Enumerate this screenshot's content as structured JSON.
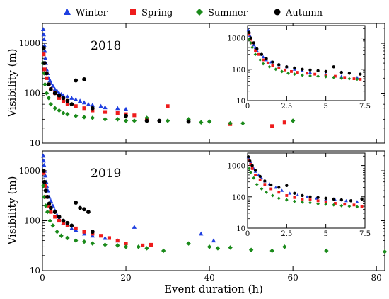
{
  "legend": [
    {
      "name": "Winter",
      "marker": "triangle",
      "color": "#1f3fe0"
    },
    {
      "name": "Spring",
      "marker": "square",
      "color": "#ee1c1c"
    },
    {
      "name": "Summer",
      "marker": "diamond",
      "color": "#1a8a1a"
    },
    {
      "name": "Autumn",
      "marker": "circle",
      "color": "#000000"
    }
  ],
  "chart_data": [
    {
      "type": "scatter",
      "title": "2018",
      "xlabel": "",
      "ylabel": "Visibility (m)",
      "xlim": [
        0,
        82
      ],
      "ylim": [
        10,
        2500
      ],
      "yscale": "log",
      "y_ticks": [
        10,
        100,
        1000
      ],
      "x_ticks": [],
      "legend_placement": "top",
      "series": [
        {
          "name": "Winter",
          "x": [
            0.2,
            0.3,
            0.4,
            0.5,
            0.6,
            0.7,
            0.8,
            1,
            1.2,
            1.5,
            1.8,
            2,
            2.5,
            3,
            3.5,
            4,
            4.5,
            5,
            6,
            7,
            8,
            9,
            10,
            11,
            12,
            14,
            15,
            18,
            20
          ],
          "y": [
            1900,
            1500,
            1200,
            900,
            700,
            500,
            400,
            300,
            250,
            200,
            180,
            160,
            140,
            120,
            110,
            100,
            95,
            90,
            85,
            80,
            75,
            70,
            65,
            60,
            58,
            55,
            52,
            50,
            48
          ]
        },
        {
          "name": "Spring",
          "x": [
            0.3,
            0.5,
            1,
            1.5,
            2,
            3,
            4,
            5,
            6,
            8,
            10,
            12,
            15,
            18,
            20,
            22,
            25,
            30,
            45,
            55,
            58
          ],
          "y": [
            600,
            300,
            200,
            150,
            120,
            100,
            80,
            70,
            60,
            55,
            50,
            45,
            42,
            40,
            38,
            36,
            30,
            55,
            24,
            22,
            26
          ]
        },
        {
          "name": "Summer",
          "x": [
            0.2,
            0.4,
            0.6,
            1,
            1.5,
            2,
            3,
            4,
            5,
            6,
            8,
            10,
            12,
            15,
            18,
            20,
            22,
            25,
            30,
            35,
            38,
            40,
            45,
            48,
            60
          ],
          "y": [
            400,
            250,
            150,
            100,
            80,
            60,
            50,
            45,
            40,
            38,
            35,
            33,
            32,
            30,
            30,
            28,
            28,
            32,
            28,
            30,
            26,
            27,
            25,
            25,
            28
          ]
        },
        {
          "name": "Autumn",
          "x": [
            0.3,
            0.5,
            1,
            1.5,
            2,
            3,
            4,
            5,
            6,
            7,
            8,
            10,
            12,
            20,
            25,
            28,
            35
          ],
          "y": [
            800,
            400,
            250,
            150,
            120,
            100,
            90,
            80,
            70,
            60,
            180,
            190,
            50,
            35,
            28,
            28,
            27
          ]
        }
      ]
    },
    {
      "type": "scatter",
      "title": "",
      "xlabel": "",
      "ylabel": "",
      "xlim": [
        0,
        7.5
      ],
      "ylim": [
        10,
        2500
      ],
      "yscale": "log",
      "x_ticks": [
        0,
        2.5,
        5,
        7.5
      ],
      "y_ticks": [
        10,
        100,
        1000
      ],
      "legend_placement": "none",
      "series": [
        {
          "name": "Winter",
          "x": [
            0.05,
            0.1,
            0.15,
            0.2,
            0.3,
            0.4,
            0.5,
            0.6,
            0.8,
            1,
            1.2,
            1.5,
            2,
            2.5,
            3,
            3.5,
            4,
            5,
            6,
            7
          ],
          "y": [
            1800,
            1500,
            1200,
            900,
            700,
            600,
            500,
            400,
            300,
            250,
            200,
            170,
            140,
            120,
            100,
            90,
            80,
            70,
            60,
            55
          ]
        },
        {
          "name": "Spring",
          "x": [
            0.1,
            0.2,
            0.3,
            0.5,
            0.7,
            1,
            1.3,
            1.6,
            2,
            2.4,
            2.8,
            3.2,
            3.8,
            4.3,
            5,
            5.6,
            6.2,
            6.8,
            7.2
          ],
          "y": [
            1300,
            900,
            700,
            400,
            300,
            200,
            160,
            130,
            110,
            95,
            85,
            80,
            75,
            70,
            65,
            60,
            55,
            50,
            48
          ]
        },
        {
          "name": "Summer",
          "x": [
            0.1,
            0.2,
            0.3,
            0.5,
            0.8,
            1,
            1.4,
            1.8,
            2.2,
            2.6,
            3,
            3.5,
            4,
            4.5,
            5,
            5.5,
            6,
            6.5,
            7
          ],
          "y": [
            900,
            700,
            500,
            300,
            200,
            150,
            120,
            100,
            85,
            75,
            70,
            65,
            62,
            60,
            58,
            55,
            52,
            50,
            48
          ]
        },
        {
          "name": "Autumn",
          "x": [
            0.1,
            0.2,
            0.4,
            0.6,
            0.9,
            1.2,
            1.6,
            2,
            2.5,
            3,
            3.5,
            4,
            4.5,
            5,
            5.5,
            6,
            6.5,
            7.2
          ],
          "y": [
            1500,
            1000,
            700,
            450,
            300,
            220,
            170,
            140,
            120,
            110,
            100,
            95,
            90,
            85,
            120,
            80,
            75,
            70
          ]
        }
      ]
    },
    {
      "type": "scatter",
      "title": "2019",
      "xlabel": "Event duration (h)",
      "ylabel": "Visibility (m)",
      "xlim": [
        0,
        82
      ],
      "ylim": [
        10,
        2500
      ],
      "yscale": "log",
      "y_ticks": [
        10,
        100,
        1000
      ],
      "x_ticks": [
        0,
        20,
        40,
        60,
        80
      ],
      "legend_placement": "none",
      "series": [
        {
          "name": "Winter",
          "x": [
            0.2,
            0.3,
            0.4,
            0.5,
            0.7,
            0.9,
            1,
            1.3,
            1.6,
            2,
            2.5,
            3,
            3.5,
            4,
            5,
            6,
            7,
            8,
            10,
            12,
            15,
            18,
            22,
            38,
            41
          ],
          "y": [
            2000,
            1600,
            1300,
            1000,
            800,
            600,
            500,
            400,
            300,
            250,
            200,
            160,
            130,
            110,
            90,
            80,
            70,
            65,
            55,
            50,
            45,
            40,
            75,
            55,
            40
          ]
        },
        {
          "name": "Spring",
          "x": [
            0.3,
            0.6,
            1,
            1.5,
            2,
            3,
            4,
            5,
            6,
            8,
            10,
            12,
            14,
            16,
            18,
            20,
            24,
            26
          ],
          "y": [
            900,
            500,
            300,
            200,
            150,
            120,
            100,
            90,
            80,
            70,
            60,
            55,
            50,
            45,
            40,
            35,
            32,
            33
          ]
        },
        {
          "name": "Summer",
          "x": [
            0.2,
            0.4,
            0.8,
            1.2,
            1.8,
            2.5,
            3.5,
            4.5,
            6,
            8,
            10,
            12,
            15,
            18,
            20,
            23,
            25,
            29,
            35,
            40,
            42,
            45,
            50,
            55,
            58,
            68,
            82
          ],
          "y": [
            500,
            300,
            200,
            150,
            100,
            80,
            60,
            50,
            45,
            40,
            38,
            35,
            33,
            32,
            30,
            30,
            28,
            25,
            35,
            30,
            28,
            29,
            26,
            25,
            30,
            25,
            24
          ]
        },
        {
          "name": "Autumn",
          "x": [
            0.3,
            0.5,
            0.8,
            1.2,
            1.6,
            2,
            3,
            4,
            5,
            6,
            7,
            8,
            9,
            10,
            11,
            12
          ],
          "y": [
            1000,
            600,
            400,
            300,
            220,
            180,
            150,
            120,
            100,
            90,
            80,
            230,
            180,
            170,
            150,
            60
          ]
        }
      ]
    },
    {
      "type": "scatter",
      "title": "",
      "xlabel": "",
      "ylabel": "",
      "xlim": [
        0,
        7.5
      ],
      "ylim": [
        10,
        2500
      ],
      "yscale": "log",
      "x_ticks": [
        0,
        2.5,
        5,
        7.5
      ],
      "y_ticks": [
        10,
        100,
        1000
      ],
      "legend_placement": "none",
      "series": [
        {
          "name": "Winter",
          "x": [
            0.05,
            0.1,
            0.2,
            0.3,
            0.4,
            0.5,
            0.7,
            0.9,
            1.1,
            1.4,
            1.8,
            2.2,
            2.7,
            3.2,
            3.8,
            4.4,
            5,
            5.6,
            6.3,
            7
          ],
          "y": [
            1900,
            1600,
            1300,
            1000,
            800,
            650,
            500,
            400,
            320,
            260,
            200,
            160,
            130,
            115,
            100,
            90,
            85,
            80,
            75,
            70
          ]
        },
        {
          "name": "Spring",
          "x": [
            0.1,
            0.2,
            0.3,
            0.5,
            0.8,
            1.1,
            1.5,
            2,
            2.5,
            3,
            3.5,
            4,
            4.5,
            5,
            5.6,
            6.2,
            6.8,
            7.3
          ],
          "y": [
            1500,
            1100,
            800,
            500,
            350,
            250,
            180,
            140,
            110,
            95,
            85,
            80,
            75,
            70,
            62,
            58,
            55,
            50
          ]
        },
        {
          "name": "Summer",
          "x": [
            0.1,
            0.2,
            0.4,
            0.6,
            0.9,
            1.2,
            1.6,
            2,
            2.5,
            3,
            3.5,
            4,
            4.5,
            5,
            5.5,
            6,
            6.5,
            7
          ],
          "y": [
            800,
            600,
            400,
            250,
            180,
            140,
            110,
            90,
            80,
            72,
            68,
            65,
            60,
            58,
            55,
            52,
            50,
            48
          ]
        },
        {
          "name": "Autumn",
          "x": [
            0.05,
            0.15,
            0.3,
            0.5,
            0.8,
            1.1,
            1.5,
            2,
            2.5,
            3,
            3.5,
            4,
            4.5,
            5,
            5.5,
            6,
            6.6,
            7.3
          ],
          "y": [
            1900,
            1400,
            1000,
            700,
            450,
            320,
            240,
            200,
            230,
            130,
            110,
            100,
            95,
            90,
            85,
            80,
            75,
            85
          ]
        }
      ]
    }
  ]
}
